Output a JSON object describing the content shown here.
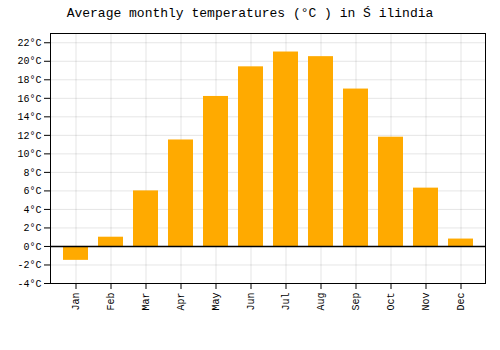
{
  "chart_data": {
    "type": "bar",
    "title": "Average monthly temperatures (°C ) in Ś ilindia",
    "categories": [
      "Jan",
      "Feb",
      "Mar",
      "Apr",
      "May",
      "Jun",
      "Jul",
      "Aug",
      "Sep",
      "Oct",
      "Nov",
      "Dec"
    ],
    "values": [
      -1.5,
      1.0,
      6.0,
      11.5,
      16.2,
      19.4,
      21.0,
      20.5,
      17.0,
      11.8,
      6.3,
      0.8
    ],
    "color": "#FFAA00",
    "ylim": [
      -4,
      23
    ],
    "yticks": [
      {
        "value": -4,
        "label": "-4°C"
      },
      {
        "value": -2,
        "label": "-2°C"
      },
      {
        "value": 0,
        "label": "0°C"
      },
      {
        "value": 2,
        "label": "2°C"
      },
      {
        "value": 4,
        "label": "4°C"
      },
      {
        "value": 6,
        "label": "6°C"
      },
      {
        "value": 8,
        "label": "8°C"
      },
      {
        "value": 10,
        "label": "10°C"
      },
      {
        "value": 12,
        "label": "12°C"
      },
      {
        "value": 14,
        "label": "14°C"
      },
      {
        "value": 16,
        "label": "16°C"
      },
      {
        "value": 18,
        "label": "18°C"
      },
      {
        "value": 20,
        "label": "20°C"
      },
      {
        "value": 22,
        "label": "22°C"
      }
    ],
    "grid": true
  }
}
